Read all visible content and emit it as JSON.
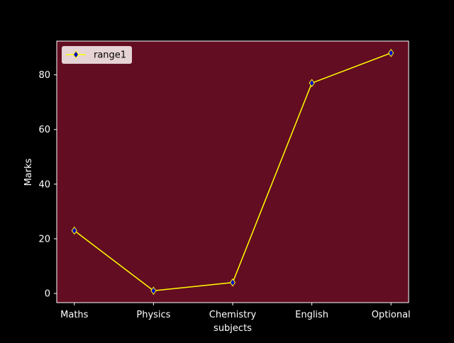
{
  "chart_data": {
    "type": "line",
    "categories": [
      "Maths",
      "Physics",
      "Chemistry",
      "English",
      "Optional"
    ],
    "series": [
      {
        "name": "range1",
        "values": [
          23,
          1,
          4,
          77,
          88
        ]
      }
    ],
    "xlabel": "subjects",
    "ylabel": "Marks",
    "ylim": [
      -3.35,
      92.35
    ],
    "yticks": [
      0,
      20,
      40,
      60,
      80
    ],
    "grid": false,
    "legend": "top-left",
    "colors": {
      "figure_bg": "#000000",
      "axes_bg": "#630d22",
      "line": "#ffff00",
      "marker_face": "#0000cc",
      "marker_edge": "#ffff00",
      "text": "#ffffff",
      "legend_bg": "#e6d3d6",
      "legend_text": "#000000"
    }
  }
}
